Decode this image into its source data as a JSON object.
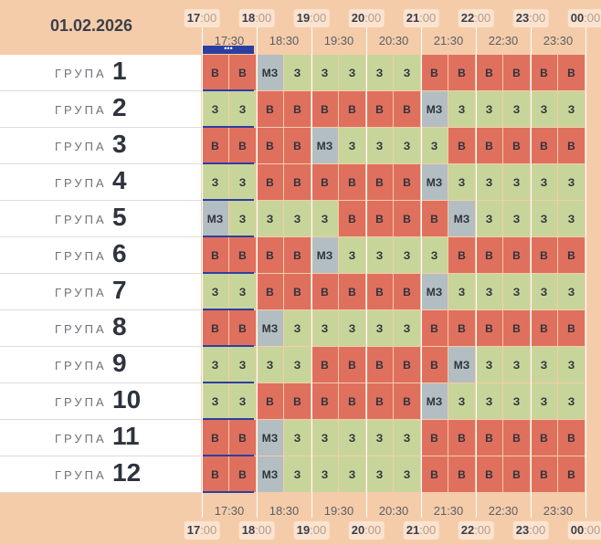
{
  "date": "01.02.2026",
  "hours": [
    {
      "h": "17",
      "m": ":00"
    },
    {
      "h": "18",
      "m": ":00"
    },
    {
      "h": "19",
      "m": ":00"
    },
    {
      "h": "20",
      "m": ":00"
    },
    {
      "h": "21",
      "m": ":00"
    },
    {
      "h": "22",
      "m": ":00"
    },
    {
      "h": "23",
      "m": ":00"
    },
    {
      "h": "00",
      "m": ":00"
    }
  ],
  "half_hours": [
    "17:30",
    "18:30",
    "19:30",
    "20:30",
    "21:30",
    "22:30",
    "23:30"
  ],
  "cursor_dots": "•••",
  "group_word": "ГРУПА",
  "groups": [
    {
      "num": "1",
      "slots": [
        "В",
        "В",
        "МЗ",
        "З",
        "З",
        "З",
        "З",
        "З",
        "В",
        "В",
        "В",
        "В",
        "В",
        "В"
      ]
    },
    {
      "num": "2",
      "slots": [
        "З",
        "З",
        "В",
        "В",
        "В",
        "В",
        "В",
        "В",
        "МЗ",
        "З",
        "З",
        "З",
        "З",
        "З"
      ]
    },
    {
      "num": "3",
      "slots": [
        "В",
        "В",
        "В",
        "В",
        "МЗ",
        "З",
        "З",
        "З",
        "З",
        "В",
        "В",
        "В",
        "В",
        "В"
      ]
    },
    {
      "num": "4",
      "slots": [
        "З",
        "З",
        "В",
        "В",
        "В",
        "В",
        "В",
        "В",
        "МЗ",
        "З",
        "З",
        "З",
        "З",
        "З"
      ]
    },
    {
      "num": "5",
      "slots": [
        "МЗ",
        "З",
        "З",
        "З",
        "З",
        "В",
        "В",
        "В",
        "В",
        "МЗ",
        "З",
        "З",
        "З",
        "З"
      ]
    },
    {
      "num": "6",
      "slots": [
        "В",
        "В",
        "В",
        "В",
        "МЗ",
        "З",
        "З",
        "З",
        "З",
        "В",
        "В",
        "В",
        "В",
        "В"
      ]
    },
    {
      "num": "7",
      "slots": [
        "З",
        "З",
        "В",
        "В",
        "В",
        "В",
        "В",
        "В",
        "МЗ",
        "З",
        "З",
        "З",
        "З",
        "З"
      ]
    },
    {
      "num": "8",
      "slots": [
        "В",
        "В",
        "МЗ",
        "З",
        "З",
        "З",
        "З",
        "З",
        "В",
        "В",
        "В",
        "В",
        "В",
        "В"
      ]
    },
    {
      "num": "9",
      "slots": [
        "З",
        "З",
        "З",
        "З",
        "В",
        "В",
        "В",
        "В",
        "В",
        "МЗ",
        "З",
        "З",
        "З",
        "З"
      ]
    },
    {
      "num": "10",
      "slots": [
        "З",
        "З",
        "В",
        "В",
        "В",
        "В",
        "В",
        "В",
        "МЗ",
        "З",
        "З",
        "З",
        "З",
        "З"
      ]
    },
    {
      "num": "11",
      "slots": [
        "В",
        "В",
        "МЗ",
        "З",
        "З",
        "З",
        "З",
        "З",
        "В",
        "В",
        "В",
        "В",
        "В",
        "В"
      ]
    },
    {
      "num": "12",
      "slots": [
        "В",
        "В",
        "МЗ",
        "З",
        "З",
        "З",
        "З",
        "З",
        "В",
        "В",
        "В",
        "В",
        "В",
        "В"
      ]
    }
  ],
  "colors": {
    "В": "#e0705e",
    "З": "#c8d59a",
    "МЗ": "#b3bec2",
    "accent": "#2c3fa0"
  }
}
